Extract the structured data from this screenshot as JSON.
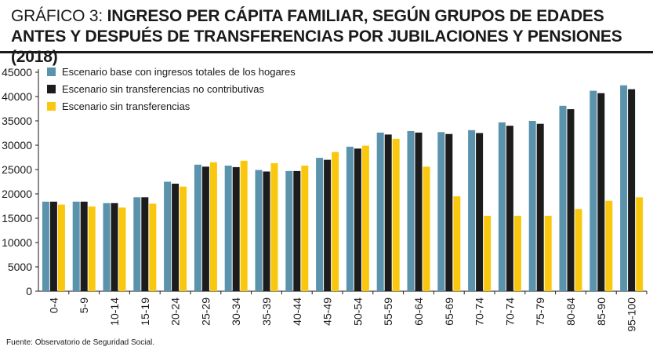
{
  "header": {
    "prefix": "GRÁFICO 3:",
    "title_line1": "INGRESO PER CÁPITA FAMILIAR, SEGÚN GRUPOS DE EDADES",
    "title_line2": "ANTES Y DESPUÉS DE TRANSFERENCIAS POR JUBILACIONES Y PENSIONES (2018)"
  },
  "source": "Fuente: Observatorio de Seguridad Social.",
  "colors": {
    "base": "#5b93ad",
    "no_contrib": "#1c1c1c",
    "sin_transf": "#f9c80e",
    "text": "#1a1a1a"
  },
  "chart_data": {
    "type": "bar",
    "title": "INGRESO PER CÁPITA FAMILIAR, SEGÚN GRUPOS DE EDADES ANTES Y DESPUÉS DE TRANSFERENCIAS POR JUBILACIONES Y PENSIONES (2018)",
    "xlabel": "",
    "ylabel": "",
    "ylim": [
      0,
      45000
    ],
    "yticks": [
      0,
      5000,
      10000,
      15000,
      20000,
      25000,
      30000,
      35000,
      40000,
      45000
    ],
    "legend_position": "top-left",
    "grid": false,
    "categories": [
      "0-4",
      "5-9",
      "10-14",
      "15-19",
      "20-24",
      "25-29",
      "30-34",
      "35-39",
      "40-44",
      "45-49",
      "50-54",
      "55-59",
      "60-64",
      "65-69",
      "70-74",
      "70-74",
      "75-79",
      "80-84",
      "85-90",
      "95-100"
    ],
    "series": [
      {
        "name": "Escenario base con ingresos totales de los hogares",
        "color_key": "base",
        "values": [
          18400,
          18400,
          18100,
          19300,
          22500,
          26000,
          25800,
          24900,
          24700,
          27400,
          29700,
          32600,
          32900,
          32700,
          33100,
          34700,
          35000,
          38100,
          41200,
          42300
        ]
      },
      {
        "name": "Escenario sin transferencias no contributivas",
        "color_key": "no_contrib",
        "values": [
          18400,
          18400,
          18100,
          19300,
          22100,
          25600,
          25500,
          24600,
          24700,
          27000,
          29300,
          32200,
          32600,
          32300,
          32500,
          34000,
          34400,
          37400,
          40700,
          41500
        ]
      },
      {
        "name": "Escenario sin transferencias",
        "color_key": "sin_transf",
        "values": [
          17800,
          17400,
          17200,
          18000,
          21500,
          26500,
          26800,
          26300,
          25800,
          28600,
          29900,
          31300,
          25600,
          19500,
          15500,
          15500,
          15500,
          16900,
          18600,
          19300
        ]
      }
    ]
  }
}
